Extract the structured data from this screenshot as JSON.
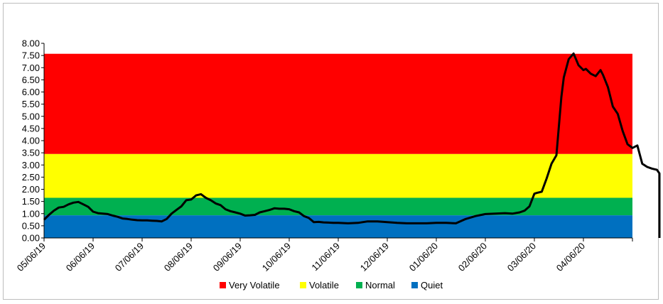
{
  "chart_data": {
    "type": "line",
    "title": "",
    "xlabel": "",
    "ylabel": "",
    "ylim": [
      0,
      8
    ],
    "y_ticks": [
      "0.00",
      "0.50",
      "1.00",
      "1.50",
      "2.00",
      "2.50",
      "3.00",
      "3.50",
      "4.00",
      "4.50",
      "5.00",
      "5.50",
      "6.00",
      "6.50",
      "7.00",
      "7.50",
      "8.00"
    ],
    "x_ticks": [
      "05/06/19",
      "06/06/19",
      "07/06/19",
      "08/06/19",
      "09/06/19",
      "10/06/19",
      "11/06/19",
      "12/06/19",
      "01/06/20",
      "02/06/20",
      "03/06/20",
      "04/06/20"
    ],
    "bands": [
      {
        "name": "Very Volatile",
        "color": "#ff0000",
        "from": 3.45,
        "to": 7.57
      },
      {
        "name": "Volatile",
        "color": "#ffff00",
        "from": 1.65,
        "to": 3.45
      },
      {
        "name": "Normal",
        "color": "#00b050",
        "from": 0.93,
        "to": 1.65
      },
      {
        "name": "Quiet",
        "color": "#0070c0",
        "from": 0,
        "to": 0.93
      }
    ],
    "legend_position": "bottom",
    "series": [
      {
        "color": "#000000",
        "x": [
          0,
          0.1,
          0.2,
          0.3,
          0.4,
          0.5,
          0.6,
          0.7,
          0.8,
          0.9,
          1.0,
          1.1,
          1.2,
          1.3,
          1.4,
          1.5,
          1.6,
          1.7,
          1.8,
          1.9,
          2.0,
          2.1,
          2.2,
          2.3,
          2.4,
          2.5,
          2.6,
          2.7,
          2.8,
          2.9,
          3.0,
          3.1,
          3.2,
          3.3,
          3.4,
          3.5,
          3.6,
          3.7,
          3.8,
          3.9,
          4.0,
          4.1,
          4.2,
          4.3,
          4.4,
          4.5,
          4.6,
          4.7,
          4.8,
          4.9,
          5.0,
          5.1,
          5.2,
          5.3,
          5.4,
          5.5,
          5.6,
          5.7,
          5.8,
          5.9,
          6.0,
          6.2,
          6.4,
          6.6,
          6.8,
          7.0,
          7.2,
          7.4,
          7.6,
          7.8,
          8.0,
          8.2,
          8.4,
          8.6,
          8.8,
          9.0,
          9.2,
          9.4,
          9.55,
          9.7,
          9.8,
          9.9,
          10.0,
          10.05,
          10.15,
          10.25,
          10.35,
          10.45,
          10.5,
          10.55,
          10.6,
          10.7,
          10.8,
          10.9,
          11.0,
          11.05,
          11.15,
          11.25,
          11.35,
          11.4,
          11.5,
          11.6,
          11.7,
          11.8,
          11.9,
          12.0,
          12.1,
          12.2,
          12.3,
          12.4,
          12.5,
          12.55
        ],
        "y": [
          0.75,
          0.95,
          1.12,
          1.25,
          1.28,
          1.38,
          1.45,
          1.48,
          1.38,
          1.28,
          1.08,
          1.02,
          1.0,
          0.98,
          0.92,
          0.87,
          0.8,
          0.78,
          0.75,
          0.73,
          0.72,
          0.72,
          0.71,
          0.7,
          0.68,
          0.78,
          1.0,
          1.15,
          1.3,
          1.55,
          1.58,
          1.75,
          1.8,
          1.65,
          1.55,
          1.42,
          1.35,
          1.18,
          1.1,
          1.05,
          1.0,
          0.92,
          0.93,
          0.95,
          1.05,
          1.1,
          1.15,
          1.22,
          1.2,
          1.2,
          1.18,
          1.1,
          1.05,
          0.9,
          0.82,
          0.65,
          0.66,
          0.64,
          0.63,
          0.62,
          0.62,
          0.6,
          0.62,
          0.68,
          0.68,
          0.65,
          0.62,
          0.6,
          0.6,
          0.6,
          0.62,
          0.62,
          0.6,
          0.78,
          0.9,
          0.98,
          1.0,
          1.02,
          1.0,
          1.05,
          1.12,
          1.3,
          1.82,
          1.85,
          1.9,
          2.45,
          3.05,
          3.4,
          4.6,
          5.8,
          6.6,
          7.35,
          7.58,
          7.1,
          6.9,
          6.95,
          6.75,
          6.65,
          6.9,
          6.7,
          6.2,
          5.4,
          5.1,
          4.4,
          3.85,
          3.7,
          3.8,
          3.05,
          2.92,
          2.85,
          2.8,
          2.65
        ]
      }
    ]
  }
}
